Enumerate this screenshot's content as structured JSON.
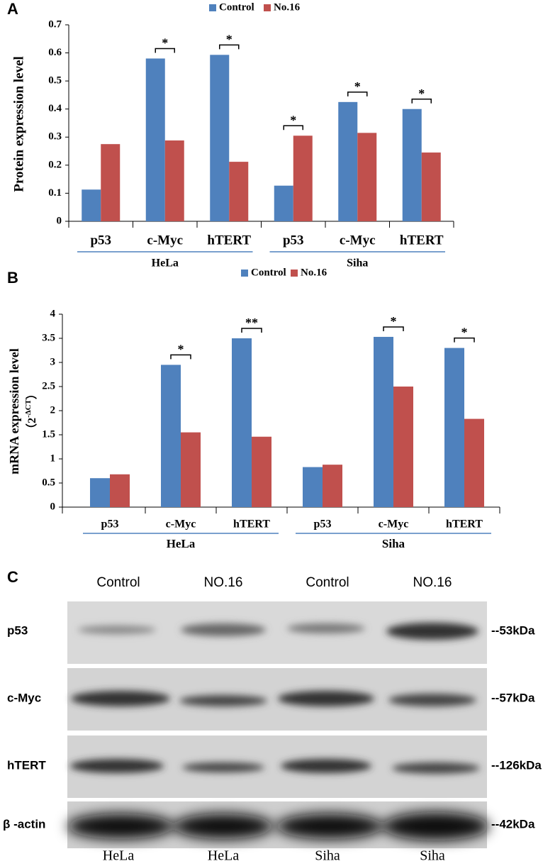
{
  "chart_data": [
    {
      "type": "bar",
      "panel": "A",
      "ylabel": "Protein expression level",
      "categories": [
        "p53",
        "c-Myc",
        "hTERT",
        "p53",
        "c-Myc",
        "hTERT"
      ],
      "group_labels": [
        "HeLa",
        "Siha"
      ],
      "series": [
        {
          "name": "Control",
          "color": "#4f81bd",
          "values": [
            0.113,
            0.58,
            0.593,
            0.127,
            0.425,
            0.4
          ]
        },
        {
          "name": "No.16",
          "color": "#c0504d",
          "values": [
            0.275,
            0.288,
            0.212,
            0.305,
            0.315,
            0.245
          ]
        }
      ],
      "significance": [
        null,
        "*",
        "*",
        "*",
        "*",
        "*"
      ],
      "ylim": [
        0,
        0.7
      ],
      "yticks": [
        0,
        0.1,
        0.2,
        0.3,
        0.4,
        0.5,
        0.6,
        0.7
      ],
      "legend": "top"
    },
    {
      "type": "bar",
      "panel": "B",
      "ylabel": "mRNA expression level",
      "ylabel_unit": {
        "open": "（2",
        "sup": "-ΔCT",
        "close": "）"
      },
      "categories": [
        "p53",
        "c-Myc",
        "hTERT",
        "p53",
        "c-Myc",
        "hTERT"
      ],
      "group_labels": [
        "HeLa",
        "Siha"
      ],
      "series": [
        {
          "name": "Control",
          "color": "#4f81bd",
          "values": [
            0.6,
            2.95,
            3.5,
            0.83,
            3.53,
            3.3
          ]
        },
        {
          "name": "No.16",
          "color": "#c0504d",
          "values": [
            0.68,
            1.55,
            1.46,
            0.88,
            2.5,
            1.83
          ]
        }
      ],
      "significance": [
        null,
        "*",
        "**",
        null,
        "*",
        "*"
      ],
      "ylim": [
        0,
        4
      ],
      "yticks": [
        0,
        0.5,
        1,
        1.5,
        2,
        2.5,
        3,
        3.5,
        4
      ],
      "legend": "top"
    }
  ],
  "panel_c": {
    "panel": "C",
    "columns": [
      "Control",
      "NO.16",
      "Control",
      "NO.16"
    ],
    "rows": [
      {
        "label": "p53",
        "size": "--53kDa"
      },
      {
        "label": "c-Myc",
        "size": "--57kDa"
      },
      {
        "label": "hTERT",
        "size": "--126kDa"
      },
      {
        "label": "β -actin",
        "size": "--42kDa"
      }
    ],
    "cell_lines": [
      "HeLa",
      "HeLa",
      "Siha",
      "Siha"
    ]
  }
}
